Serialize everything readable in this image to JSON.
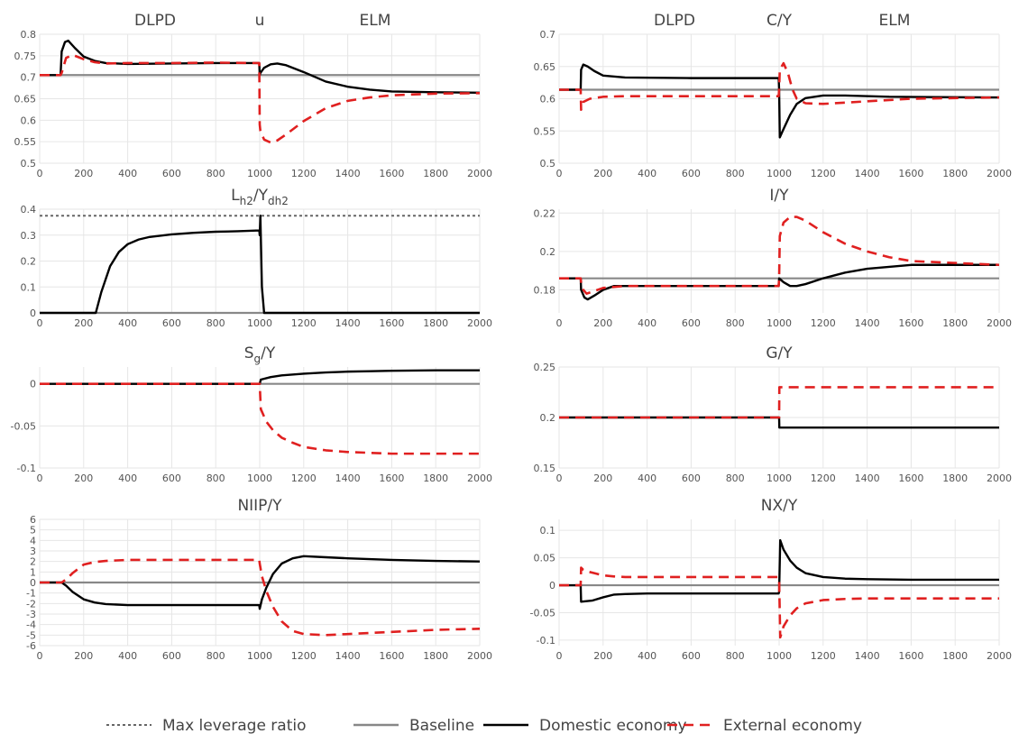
{
  "legend": [
    {
      "name": "Max leverage ratio",
      "color": "#666666",
      "style": "dotted"
    },
    {
      "name": "Baseline",
      "color": "#888888",
      "style": "solid"
    },
    {
      "name": "Domestic economy",
      "color": "#000000",
      "style": "solid"
    },
    {
      "name": "External economy",
      "color": "#e02020",
      "style": "dashed"
    }
  ],
  "chart_data": [
    {
      "type": "line",
      "title": "u",
      "left_label": "DLPD",
      "right_label": "ELM",
      "xlim": [
        0,
        2000
      ],
      "xticks": [
        0,
        200,
        400,
        600,
        800,
        1000,
        1200,
        1400,
        1600,
        1800,
        2000
      ],
      "ylim": [
        0.5,
        0.8
      ],
      "yticks": [
        0.5,
        0.55,
        0.6,
        0.65,
        0.7,
        0.75,
        0.8
      ],
      "series": [
        {
          "name": "Baseline",
          "x": [
            0,
            2000
          ],
          "y": [
            0.705,
            0.705
          ]
        },
        {
          "name": "Domestic economy",
          "x": [
            0,
            95,
            100,
            115,
            130,
            160,
            200,
            250,
            300,
            400,
            600,
            800,
            998,
            1000,
            1003,
            1020,
            1050,
            1080,
            1120,
            1200,
            1300,
            1400,
            1500,
            1600,
            1800,
            2000
          ],
          "y": [
            0.705,
            0.705,
            0.76,
            0.782,
            0.785,
            0.768,
            0.748,
            0.738,
            0.733,
            0.731,
            0.732,
            0.733,
            0.733,
            0.705,
            0.71,
            0.722,
            0.73,
            0.732,
            0.728,
            0.712,
            0.69,
            0.678,
            0.671,
            0.667,
            0.665,
            0.664
          ]
        },
        {
          "name": "External economy",
          "x": [
            0,
            95,
            100,
            120,
            150,
            200,
            250,
            300,
            400,
            600,
            800,
            998,
            1000,
            1003,
            1020,
            1050,
            1080,
            1120,
            1200,
            1300,
            1400,
            1500,
            1600,
            1800,
            2000
          ],
          "y": [
            0.705,
            0.705,
            0.71,
            0.745,
            0.752,
            0.742,
            0.735,
            0.732,
            0.733,
            0.733,
            0.734,
            0.733,
            0.59,
            0.575,
            0.555,
            0.548,
            0.553,
            0.567,
            0.598,
            0.628,
            0.645,
            0.653,
            0.658,
            0.662,
            0.663
          ]
        }
      ]
    },
    {
      "type": "line",
      "title": "C/Y",
      "left_label": "DLPD",
      "right_label": "ELM",
      "xlim": [
        0,
        2000
      ],
      "xticks": [
        0,
        200,
        400,
        600,
        800,
        1000,
        1200,
        1400,
        1600,
        1800,
        2000
      ],
      "ylim": [
        0.5,
        0.7
      ],
      "yticks": [
        0.5,
        0.55,
        0.6,
        0.65,
        0.7
      ],
      "series": [
        {
          "name": "Baseline",
          "x": [
            0,
            2000
          ],
          "y": [
            0.614,
            0.614
          ]
        },
        {
          "name": "Domestic economy",
          "x": [
            0,
            98,
            100,
            110,
            130,
            160,
            200,
            300,
            600,
            998,
            1000,
            1003,
            1020,
            1050,
            1080,
            1120,
            1200,
            1300,
            1500,
            2000
          ],
          "y": [
            0.614,
            0.614,
            0.645,
            0.653,
            0.65,
            0.643,
            0.636,
            0.633,
            0.632,
            0.632,
            0.614,
            0.54,
            0.553,
            0.575,
            0.592,
            0.601,
            0.605,
            0.605,
            0.603,
            0.602
          ]
        },
        {
          "name": "External economy",
          "x": [
            0,
            98,
            100,
            110,
            140,
            200,
            300,
            600,
            998,
            1000,
            1003,
            1020,
            1040,
            1060,
            1080,
            1120,
            1200,
            1400,
            1600,
            2000
          ],
          "y": [
            0.614,
            0.614,
            0.583,
            0.595,
            0.6,
            0.603,
            0.604,
            0.604,
            0.604,
            0.614,
            0.645,
            0.655,
            0.64,
            0.615,
            0.6,
            0.593,
            0.592,
            0.596,
            0.6,
            0.602
          ]
        }
      ]
    },
    {
      "type": "line",
      "title": "Lh2/Ydh2",
      "title_main": "L",
      "title_sub1": "h2",
      "title_mid": "/Y",
      "title_sub2": "dh2",
      "xlim": [
        0,
        2000
      ],
      "xticks": [
        0,
        200,
        400,
        600,
        800,
        1000,
        1200,
        1400,
        1600,
        1800,
        2000
      ],
      "ylim": [
        0,
        0.4
      ],
      "yticks": [
        0,
        0.1,
        0.2,
        0.3,
        0.4
      ],
      "series": [
        {
          "name": "Max leverage ratio",
          "x": [
            0,
            2000
          ],
          "y": [
            0.375,
            0.375
          ]
        },
        {
          "name": "Baseline",
          "x": [
            0,
            2000
          ],
          "y": [
            0,
            0
          ]
        },
        {
          "name": "Domestic economy",
          "x": [
            0,
            255,
            280,
            320,
            360,
            400,
            450,
            500,
            600,
            700,
            800,
            900,
            998,
            1000,
            1003,
            1010,
            1020,
            2000
          ],
          "y": [
            0,
            0,
            0.08,
            0.18,
            0.235,
            0.265,
            0.283,
            0.293,
            0.303,
            0.309,
            0.313,
            0.315,
            0.318,
            0.3,
            0.375,
            0.1,
            0,
            0
          ]
        }
      ]
    },
    {
      "type": "line",
      "title": "I/Y",
      "xlim": [
        0,
        2000
      ],
      "xticks": [
        0,
        200,
        400,
        600,
        800,
        1000,
        1200,
        1400,
        1600,
        1800,
        2000
      ],
      "ylim": [
        0.168,
        0.222
      ],
      "yticks": [
        0.18,
        0.2,
        0.22
      ],
      "series": [
        {
          "name": "Baseline",
          "x": [
            0,
            2000
          ],
          "y": [
            0.186,
            0.186
          ]
        },
        {
          "name": "Domestic economy",
          "x": [
            0,
            98,
            100,
            115,
            130,
            160,
            200,
            250,
            300,
            400,
            600,
            998,
            1000,
            1020,
            1050,
            1080,
            1120,
            1200,
            1300,
            1400,
            1500,
            1600,
            1800,
            2000
          ],
          "y": [
            0.186,
            0.186,
            0.18,
            0.176,
            0.175,
            0.177,
            0.18,
            0.182,
            0.182,
            0.182,
            0.182,
            0.182,
            0.186,
            0.184,
            0.182,
            0.182,
            0.183,
            0.186,
            0.189,
            0.191,
            0.192,
            0.193,
            0.193,
            0.193
          ]
        },
        {
          "name": "External economy",
          "x": [
            0,
            98,
            100,
            110,
            125,
            150,
            200,
            300,
            600,
            998,
            1000,
            1003,
            1020,
            1050,
            1080,
            1120,
            1200,
            1300,
            1400,
            1500,
            1600,
            1800,
            2000
          ],
          "y": [
            0.186,
            0.186,
            0.184,
            0.18,
            0.178,
            0.179,
            0.181,
            0.182,
            0.182,
            0.182,
            0.186,
            0.208,
            0.215,
            0.218,
            0.218,
            0.216,
            0.21,
            0.204,
            0.2,
            0.197,
            0.195,
            0.194,
            0.193
          ]
        }
      ]
    },
    {
      "type": "line",
      "title": "Sg/Y",
      "title_main": "S",
      "title_sub1": "g",
      "title_mid": "/Y",
      "xlim": [
        0,
        2000
      ],
      "xticks": [
        0,
        200,
        400,
        600,
        800,
        1000,
        1200,
        1400,
        1600,
        1800,
        2000
      ],
      "ylim": [
        -0.1,
        0.02
      ],
      "yticks": [
        -0.1,
        -0.05,
        0
      ],
      "series": [
        {
          "name": "Baseline",
          "x": [
            0,
            2000
          ],
          "y": [
            0,
            0
          ]
        },
        {
          "name": "Domestic economy",
          "x": [
            0,
            1000,
            1005,
            1050,
            1100,
            1200,
            1300,
            1400,
            1500,
            1600,
            1800,
            2000
          ],
          "y": [
            0,
            0,
            0.005,
            0.008,
            0.01,
            0.012,
            0.0135,
            0.0145,
            0.015,
            0.0155,
            0.016,
            0.016
          ]
        },
        {
          "name": "External economy",
          "x": [
            0,
            1000,
            1005,
            1030,
            1060,
            1100,
            1150,
            1200,
            1300,
            1400,
            1500,
            1600,
            1800,
            2000
          ],
          "y": [
            0,
            0,
            -0.03,
            -0.045,
            -0.055,
            -0.064,
            -0.07,
            -0.075,
            -0.079,
            -0.081,
            -0.082,
            -0.083,
            -0.083,
            -0.083
          ]
        }
      ]
    },
    {
      "type": "line",
      "title": "G/Y",
      "xlim": [
        0,
        2000
      ],
      "xticks": [
        0,
        200,
        400,
        600,
        800,
        1000,
        1200,
        1400,
        1600,
        1800,
        2000
      ],
      "ylim": [
        0.15,
        0.25
      ],
      "yticks": [
        0.15,
        0.2,
        0.25
      ],
      "series": [
        {
          "name": "Domestic economy",
          "x": [
            0,
            1000,
            1001,
            2000
          ],
          "y": [
            0.2,
            0.2,
            0.19,
            0.19
          ]
        },
        {
          "name": "External economy",
          "x": [
            0,
            1000,
            1001,
            2000
          ],
          "y": [
            0.2,
            0.2,
            0.23,
            0.23
          ]
        }
      ]
    },
    {
      "type": "line",
      "title": "NIIP/Y",
      "xlim": [
        0,
        2000
      ],
      "xticks": [
        0,
        200,
        400,
        600,
        800,
        1000,
        1200,
        1400,
        1600,
        1800,
        2000
      ],
      "ylim": [
        -6,
        6
      ],
      "yticks": [
        -6,
        -5,
        -4,
        -3,
        -2,
        -1,
        0,
        1,
        2,
        3,
        4,
        5,
        6
      ],
      "series": [
        {
          "name": "Baseline",
          "x": [
            0,
            2000
          ],
          "y": [
            0,
            0
          ]
        },
        {
          "name": "Domestic economy",
          "x": [
            0,
            100,
            120,
            150,
            200,
            250,
            300,
            400,
            600,
            800,
            998,
            1000,
            1010,
            1030,
            1060,
            1100,
            1150,
            1200,
            1300,
            1400,
            1600,
            1800,
            2000
          ],
          "y": [
            0,
            0,
            -0.3,
            -0.9,
            -1.6,
            -1.9,
            -2.05,
            -2.15,
            -2.15,
            -2.15,
            -2.15,
            -2.5,
            -1.6,
            -0.5,
            0.8,
            1.8,
            2.3,
            2.5,
            2.4,
            2.3,
            2.15,
            2.05,
            2.0
          ]
        },
        {
          "name": "External economy",
          "x": [
            0,
            100,
            120,
            150,
            200,
            250,
            300,
            400,
            600,
            800,
            998,
            1000,
            1010,
            1030,
            1060,
            1100,
            1150,
            1200,
            1300,
            1400,
            1600,
            1800,
            2000
          ],
          "y": [
            0,
            0,
            0.3,
            0.9,
            1.7,
            1.95,
            2.05,
            2.15,
            2.15,
            2.15,
            2.15,
            1.8,
            0.6,
            -0.8,
            -2.3,
            -3.7,
            -4.6,
            -4.9,
            -5.0,
            -4.9,
            -4.7,
            -4.5,
            -4.4
          ]
        }
      ]
    },
    {
      "type": "line",
      "title": "NX/Y",
      "xlim": [
        0,
        2000
      ],
      "xticks": [
        0,
        200,
        400,
        600,
        800,
        1000,
        1200,
        1400,
        1600,
        1800,
        2000
      ],
      "ylim": [
        -0.11,
        0.12
      ],
      "yticks": [
        -0.1,
        -0.05,
        0,
        0.05,
        0.1
      ],
      "series": [
        {
          "name": "Baseline",
          "x": [
            0,
            2000
          ],
          "y": [
            0,
            0
          ]
        },
        {
          "name": "Domestic economy",
          "x": [
            0,
            98,
            100,
            150,
            200,
            250,
            300,
            400,
            600,
            800,
            998,
            1000,
            1005,
            1020,
            1050,
            1080,
            1120,
            1200,
            1300,
            1400,
            1600,
            2000
          ],
          "y": [
            0,
            0,
            -0.03,
            -0.028,
            -0.022,
            -0.017,
            -0.016,
            -0.015,
            -0.015,
            -0.015,
            -0.015,
            -0.012,
            0.082,
            0.065,
            0.045,
            0.032,
            0.022,
            0.015,
            0.012,
            0.011,
            0.01,
            0.01
          ]
        },
        {
          "name": "External economy",
          "x": [
            0,
            98,
            100,
            110,
            130,
            160,
            200,
            250,
            300,
            400,
            600,
            800,
            998,
            1000,
            1005,
            1020,
            1050,
            1080,
            1120,
            1200,
            1300,
            1400,
            1600,
            2000
          ],
          "y": [
            0,
            0,
            0.032,
            0.028,
            0.025,
            0.022,
            0.018,
            0.016,
            0.015,
            0.015,
            0.015,
            0.015,
            0.015,
            0.01,
            -0.095,
            -0.075,
            -0.055,
            -0.042,
            -0.033,
            -0.027,
            -0.025,
            -0.024,
            -0.024,
            -0.024
          ]
        }
      ]
    }
  ]
}
